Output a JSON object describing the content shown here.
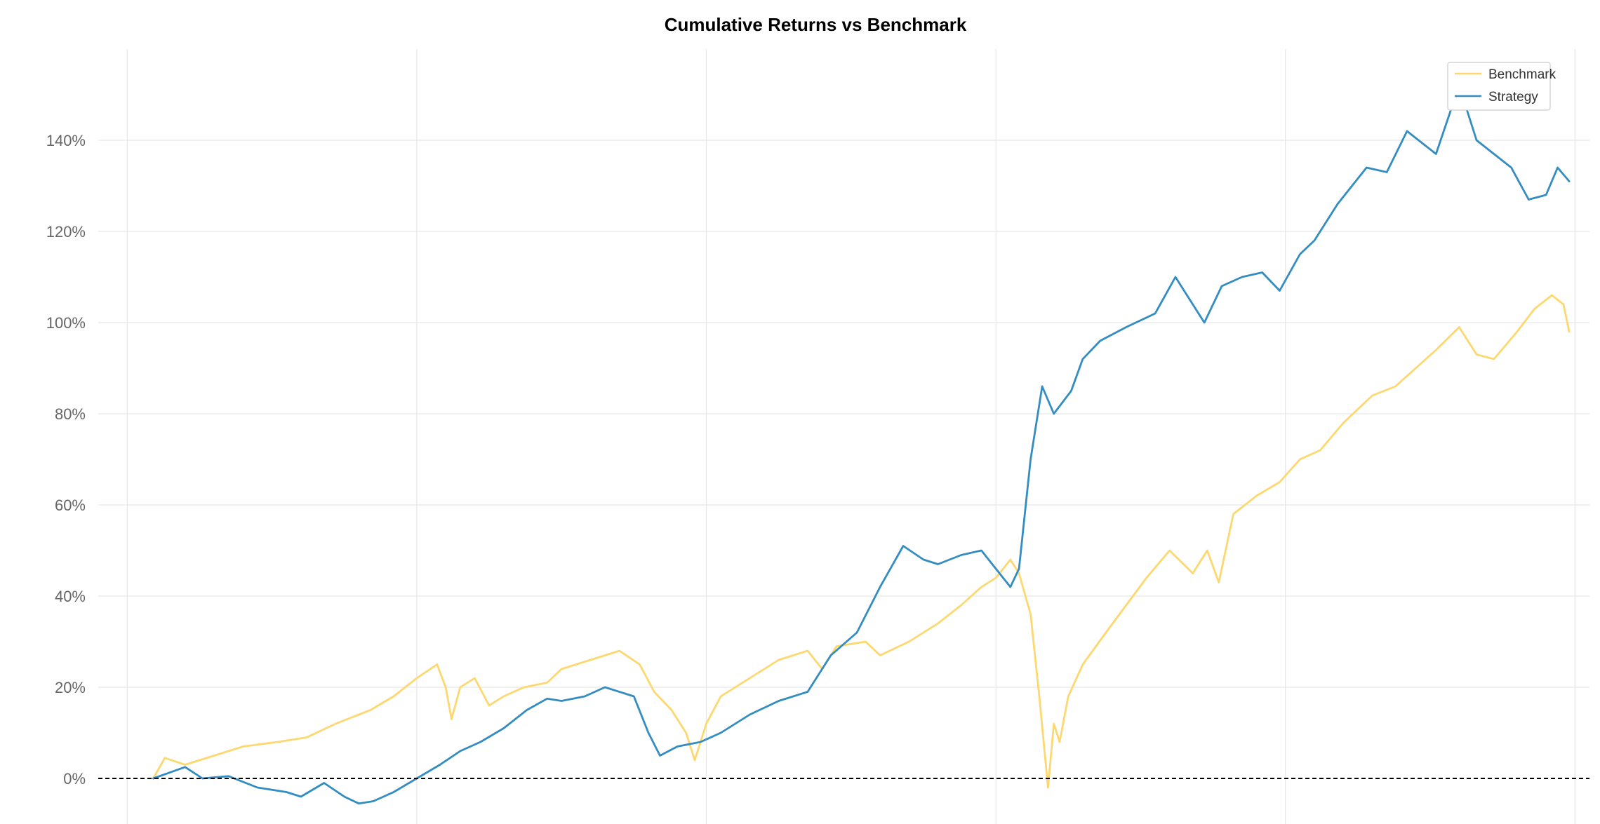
{
  "chart_data": {
    "type": "line",
    "title": "Cumulative Returns vs Benchmark",
    "subtitle": "",
    "xlabel": "",
    "ylabel": "",
    "ylim": [
      -0.1,
      1.6
    ],
    "y_ticks": [
      0,
      0.2,
      0.4,
      0.6,
      0.8,
      1.0,
      1.2,
      1.4
    ],
    "y_tick_labels": [
      "0%",
      "20%",
      "40%",
      "60%",
      "80%",
      "100%",
      "120%",
      "140%"
    ],
    "xlim": [
      -0.1,
      5.05
    ],
    "x_gridlines": [
      0,
      1,
      2,
      3,
      4,
      5
    ],
    "grid": true,
    "baseline": 0,
    "legend": {
      "position": "top-right",
      "entries": [
        "Benchmark",
        "Strategy"
      ]
    },
    "colors": {
      "benchmark": "#fdd870",
      "strategy": "#348dc1",
      "baseline": "#000000"
    },
    "series": [
      {
        "name": "Benchmark",
        "color": "#fdd870",
        "x": [
          0.09,
          0.13,
          0.2,
          0.3,
          0.4,
          0.52,
          0.62,
          0.72,
          0.84,
          0.92,
          1.0,
          1.07,
          1.1,
          1.12,
          1.15,
          1.2,
          1.25,
          1.3,
          1.37,
          1.45,
          1.5,
          1.6,
          1.7,
          1.77,
          1.82,
          1.88,
          1.93,
          1.96,
          2.0,
          2.05,
          2.15,
          2.25,
          2.35,
          2.4,
          2.45,
          2.55,
          2.6,
          2.7,
          2.8,
          2.88,
          2.95,
          3.0,
          3.05,
          3.08,
          3.12,
          3.15,
          3.18,
          3.2,
          3.22,
          3.25,
          3.3,
          3.38,
          3.45,
          3.52,
          3.6,
          3.68,
          3.73,
          3.77,
          3.82,
          3.9,
          3.98,
          4.05,
          4.12,
          4.2,
          4.3,
          4.38,
          4.45,
          4.52,
          4.6,
          4.66,
          4.72,
          4.8,
          4.86,
          4.92,
          4.96,
          4.98
        ],
        "y": [
          0.0,
          0.045,
          0.03,
          0.05,
          0.07,
          0.08,
          0.09,
          0.12,
          0.15,
          0.18,
          0.22,
          0.25,
          0.2,
          0.13,
          0.2,
          0.22,
          0.16,
          0.18,
          0.2,
          0.21,
          0.24,
          0.26,
          0.28,
          0.25,
          0.19,
          0.15,
          0.1,
          0.04,
          0.12,
          0.18,
          0.22,
          0.26,
          0.28,
          0.24,
          0.29,
          0.3,
          0.27,
          0.3,
          0.34,
          0.38,
          0.42,
          0.44,
          0.48,
          0.45,
          0.36,
          0.18,
          -0.02,
          0.12,
          0.08,
          0.18,
          0.25,
          0.32,
          0.38,
          0.44,
          0.5,
          0.45,
          0.5,
          0.43,
          0.58,
          0.62,
          0.65,
          0.7,
          0.72,
          0.78,
          0.84,
          0.86,
          0.9,
          0.94,
          0.99,
          0.93,
          0.92,
          0.98,
          1.03,
          1.06,
          1.04,
          0.98
        ]
      },
      {
        "name": "Strategy",
        "color": "#348dc1",
        "x": [
          0.09,
          0.2,
          0.26,
          0.35,
          0.45,
          0.55,
          0.6,
          0.68,
          0.75,
          0.8,
          0.85,
          0.92,
          1.0,
          1.08,
          1.15,
          1.22,
          1.3,
          1.38,
          1.45,
          1.5,
          1.58,
          1.65,
          1.75,
          1.8,
          1.84,
          1.9,
          1.98,
          2.05,
          2.15,
          2.25,
          2.35,
          2.43,
          2.52,
          2.6,
          2.68,
          2.75,
          2.8,
          2.88,
          2.95,
          3.0,
          3.05,
          3.08,
          3.12,
          3.16,
          3.2,
          3.26,
          3.3,
          3.36,
          3.45,
          3.55,
          3.62,
          3.68,
          3.72,
          3.78,
          3.85,
          3.92,
          3.98,
          4.05,
          4.1,
          4.18,
          4.28,
          4.35,
          4.42,
          4.52,
          4.6,
          4.66,
          4.7,
          4.78,
          4.84,
          4.9,
          4.94,
          4.98
        ],
        "y": [
          0.0,
          0.025,
          0.0,
          0.005,
          -0.02,
          -0.03,
          -0.04,
          -0.01,
          -0.04,
          -0.055,
          -0.05,
          -0.03,
          0.0,
          0.03,
          0.06,
          0.08,
          0.11,
          0.15,
          0.175,
          0.17,
          0.18,
          0.2,
          0.18,
          0.1,
          0.05,
          0.07,
          0.08,
          0.1,
          0.14,
          0.17,
          0.19,
          0.27,
          0.32,
          0.42,
          0.51,
          0.48,
          0.47,
          0.49,
          0.5,
          0.46,
          0.42,
          0.46,
          0.7,
          0.86,
          0.8,
          0.85,
          0.92,
          0.96,
          0.99,
          1.02,
          1.1,
          1.04,
          1.0,
          1.08,
          1.1,
          1.11,
          1.07,
          1.15,
          1.18,
          1.26,
          1.34,
          1.33,
          1.42,
          1.37,
          1.52,
          1.4,
          1.38,
          1.34,
          1.27,
          1.28,
          1.34,
          1.31
        ]
      }
    ]
  }
}
